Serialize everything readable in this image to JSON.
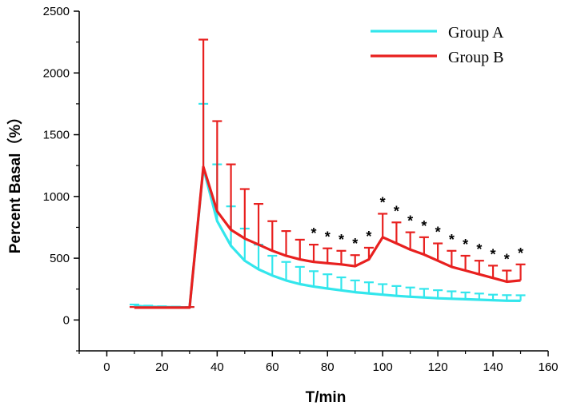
{
  "chart_data": {
    "type": "line",
    "title": "",
    "xlabel": "T/min",
    "ylabel": "Percent Basal（%）",
    "xlim": [
      -10,
      160
    ],
    "ylim": [
      -250,
      2500
    ],
    "xticks": [
      0,
      20,
      40,
      60,
      80,
      100,
      120,
      140,
      160
    ],
    "yticks": [
      0,
      500,
      1000,
      1500,
      2000,
      2500
    ],
    "x": [
      10,
      15,
      20,
      25,
      30,
      35,
      40,
      45,
      50,
      55,
      60,
      65,
      70,
      75,
      80,
      85,
      90,
      95,
      100,
      105,
      110,
      115,
      120,
      125,
      130,
      135,
      140,
      145,
      150
    ],
    "series": [
      {
        "name": "Group A",
        "color": "#33e6ec",
        "values": [
          115,
          108,
          105,
          103,
          100,
          1230,
          800,
          600,
          480,
          410,
          360,
          320,
          290,
          270,
          255,
          240,
          225,
          215,
          205,
          195,
          188,
          182,
          176,
          172,
          168,
          164,
          160,
          156,
          155
        ],
        "errors": [
          10,
          8,
          6,
          5,
          5,
          520,
          460,
          320,
          260,
          200,
          160,
          150,
          140,
          125,
          115,
          105,
          95,
          90,
          85,
          80,
          75,
          70,
          65,
          60,
          55,
          50,
          45,
          45,
          45
        ]
      },
      {
        "name": "Group B",
        "color": "#e8201f",
        "values": [
          100,
          100,
          100,
          100,
          100,
          1240,
          880,
          730,
          660,
          610,
          560,
          520,
          490,
          470,
          460,
          450,
          435,
          490,
          670,
          620,
          570,
          530,
          480,
          430,
          400,
          370,
          340,
          310,
          320
        ],
        "errors": [
          5,
          5,
          5,
          5,
          5,
          1030,
          730,
          530,
          400,
          330,
          240,
          200,
          160,
          140,
          120,
          110,
          90,
          95,
          190,
          170,
          140,
          140,
          140,
          130,
          120,
          110,
          100,
          90,
          130
        ]
      }
    ],
    "annotations": {
      "symbol": "*",
      "x": [
        75,
        80,
        85,
        90,
        95,
        100,
        105,
        110,
        115,
        120,
        125,
        130,
        135,
        140,
        145,
        150
      ]
    },
    "legend": "top-right",
    "grid": false
  }
}
